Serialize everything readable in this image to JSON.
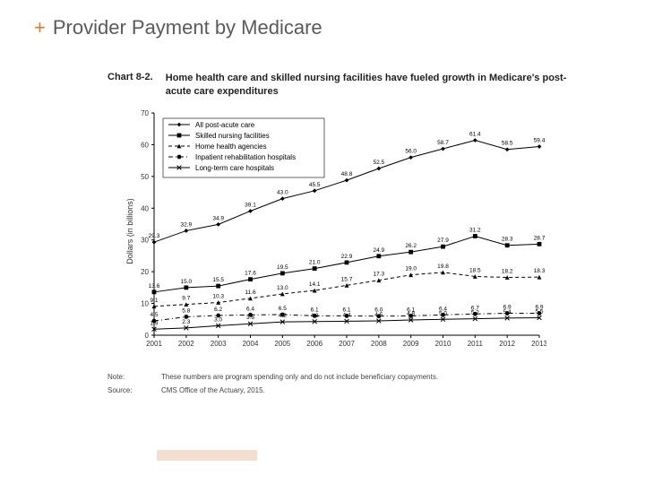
{
  "slide": {
    "plus": "+",
    "title": "Provider Payment by Medicare",
    "title_color": "#5a5a5a",
    "plus_color": "#d47b3f"
  },
  "chart": {
    "number": "Chart 8-2.",
    "title": "Home health care and skilled nursing facilities have fueled growth in Medicare's post-acute care expenditures",
    "type": "line",
    "ylabel": "Dollars (in billions)",
    "ylim": [
      0,
      70
    ],
    "ytick_step": 10,
    "xcategories": [
      "2001",
      "2002",
      "2003",
      "2004",
      "2005",
      "2006",
      "2007",
      "2008",
      "2009",
      "2010",
      "2011",
      "2012",
      "2013"
    ],
    "label_fontsize": 9,
    "tick_fontsize": 8,
    "datalabel_fontsize": 6.5,
    "axis_color": "#000000",
    "background": "#ffffff",
    "legend": {
      "position": "inside-top-left",
      "fontsize": 8,
      "items": [
        {
          "label": "All post-acute care",
          "marker": "diamond",
          "dash": "solid"
        },
        {
          "label": "Skilled nursing facilities",
          "marker": "square",
          "dash": "solid"
        },
        {
          "label": "Home health agencies",
          "marker": "triangle",
          "dash": "dash"
        },
        {
          "label": "Inpatient rehabilitation hospitals",
          "marker": "circle",
          "dash": "dashdot"
        },
        {
          "label": "Long-term care hospitals",
          "marker": "x",
          "dash": "solid"
        }
      ]
    },
    "series": [
      {
        "name": "All post-acute care",
        "color": "#000000",
        "marker": "diamond",
        "dash": "solid",
        "values": [
          29.3,
          32.9,
          34.9,
          39.1,
          43.0,
          45.5,
          48.8,
          52.5,
          56.0,
          58.7,
          61.4,
          58.5,
          59.4
        ]
      },
      {
        "name": "Skilled nursing facilities",
        "color": "#000000",
        "marker": "square",
        "dash": "solid",
        "values": [
          13.6,
          15.0,
          15.5,
          17.6,
          19.5,
          21.0,
          22.9,
          24.9,
          26.2,
          27.9,
          31.2,
          28.3,
          28.7
        ]
      },
      {
        "name": "Home health agencies",
        "color": "#000000",
        "marker": "triangle",
        "dash": "dash",
        "values": [
          9.1,
          9.7,
          10.3,
          11.6,
          13.0,
          14.1,
          15.7,
          17.3,
          19.0,
          19.8,
          18.5,
          18.2,
          18.3
        ]
      },
      {
        "name": "Inpatient rehabilitation hospitals",
        "color": "#000000",
        "marker": "circle",
        "dash": "dashdot",
        "values": [
          4.5,
          5.8,
          6.2,
          6.4,
          6.5,
          6.1,
          6.1,
          6.0,
          6.1,
          6.4,
          6.7,
          6.9,
          6.9
        ]
      },
      {
        "name": "Long-term care hospitals",
        "color": "#000000",
        "marker": "x",
        "dash": "solid",
        "values": [
          1.9,
          2.3,
          3.0,
          3.6,
          4.2,
          4.3,
          4.4,
          4.5,
          4.8,
          5.0,
          5.2,
          5.4,
          5.5
        ]
      }
    ]
  },
  "notes": {
    "note_label": "Note:",
    "note_text": "These numbers are program spending only and do not include beneficiary copayments.",
    "source_label": "Source:",
    "source_text": "CMS Office of the Actuary, 2015."
  },
  "accent_bar_color": "#d47b3f"
}
